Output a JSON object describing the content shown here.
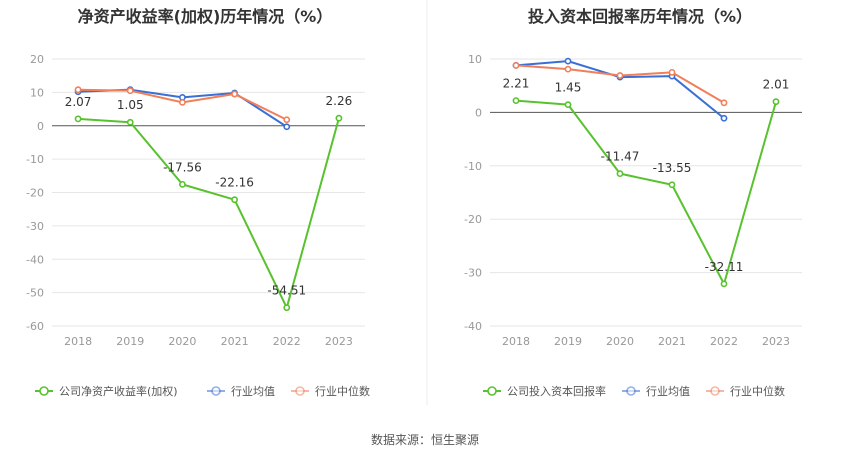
{
  "colors": {
    "company": "#58c22e",
    "industry_avg": "#3a6fd6",
    "industry_median": "#f07f5a",
    "grid": "#e6e6e6",
    "axis_text": "#999999",
    "zero_line": "#555555"
  },
  "source_label": "数据来源：",
  "source_value": "恒生聚源",
  "chart_data": [
    {
      "type": "line",
      "title": "净资产收益率(加权)历年情况（%）",
      "categories": [
        "2018",
        "2019",
        "2020",
        "2021",
        "2022",
        "2023"
      ],
      "ylim": [
        -60,
        20
      ],
      "yticks": [
        20,
        10,
        0,
        -10,
        -20,
        -30,
        -40,
        -50,
        -60
      ],
      "grid": true,
      "legend_position": "bottom",
      "series": [
        {
          "name": "公司净资产收益率(加权)",
          "key": "company",
          "values": [
            2.07,
            1.05,
            -17.56,
            -22.16,
            -54.51,
            2.26
          ],
          "labels": [
            "2.07",
            "1.05",
            "-17.56",
            "-22.16",
            "-54.51",
            "2.26"
          ]
        },
        {
          "name": "行业均值",
          "key": "industry_avg",
          "values": [
            10.2,
            10.8,
            8.5,
            9.8,
            -0.3,
            null
          ]
        },
        {
          "name": "行业中位数",
          "key": "industry_median",
          "values": [
            10.8,
            10.5,
            7.0,
            9.5,
            1.8,
            null
          ]
        }
      ]
    },
    {
      "type": "line",
      "title": "投入资本回报率历年情况（%）",
      "categories": [
        "2018",
        "2019",
        "2020",
        "2021",
        "2022",
        "2023"
      ],
      "ylim": [
        -40,
        10
      ],
      "yticks": [
        10,
        0,
        -10,
        -20,
        -30,
        -40
      ],
      "grid": true,
      "legend_position": "bottom",
      "series": [
        {
          "name": "公司投入资本回报率",
          "key": "company",
          "values": [
            2.21,
            1.45,
            -11.47,
            -13.55,
            -32.11,
            2.01
          ],
          "labels": [
            "2.21",
            "1.45",
            "-11.47",
            "-13.55",
            "-32.11",
            "2.01"
          ]
        },
        {
          "name": "行业均值",
          "key": "industry_avg",
          "values": [
            8.8,
            9.6,
            6.6,
            6.8,
            -1.1,
            null
          ]
        },
        {
          "name": "行业中位数",
          "key": "industry_median",
          "values": [
            8.8,
            8.1,
            6.9,
            7.5,
            1.8,
            null
          ]
        }
      ]
    }
  ]
}
